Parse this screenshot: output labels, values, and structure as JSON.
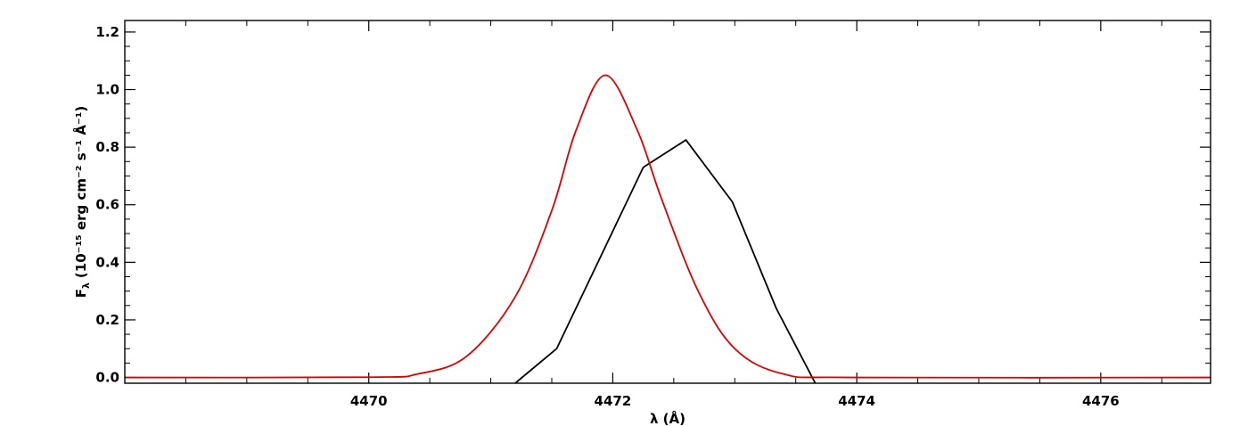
{
  "chart_data": {
    "type": "line",
    "xlabel": "λ (Å)",
    "ylabel": "F",
    "ylabel_sub": "λ",
    "ylabel_units": "(10⁻¹⁵ erg cm⁻² s⁻¹ Å⁻¹)",
    "xlim": [
      4468.0,
      4476.9
    ],
    "ylim": [
      -0.02,
      1.24
    ],
    "xticks": [
      4470,
      4472,
      4474,
      4476
    ],
    "xtick_labels": [
      "4470",
      "4472",
      "4474",
      "4476"
    ],
    "yticks": [
      0.0,
      0.2,
      0.4,
      0.6,
      0.8,
      1.0,
      1.2
    ],
    "ytick_labels": [
      "0.0",
      "0.2",
      "0.4",
      "0.6",
      "0.8",
      "1.0",
      "1.2"
    ],
    "grid": false,
    "series": [
      {
        "color": "#000000",
        "style": "polyline",
        "x": [
          4471.2,
          4471.54,
          4472.25,
          4472.6,
          4472.98,
          4473.34,
          4473.66
        ],
        "y": [
          -0.02,
          0.1,
          0.73,
          0.825,
          0.61,
          0.24,
          -0.02
        ]
      },
      {
        "color": "#dd0000",
        "style": "gaussian",
        "x": [
          4468.0,
          4470.0,
          4470.4,
          4470.8,
          4471.2,
          4471.5,
          4471.7,
          4471.94,
          4472.2,
          4472.4,
          4472.7,
          4473.0,
          4473.4,
          4474.0,
          4476.9
        ],
        "y": [
          0.0,
          0.001,
          0.012,
          0.073,
          0.28,
          0.58,
          0.86,
          1.05,
          0.86,
          0.62,
          0.3,
          0.1,
          0.012,
          0.0,
          0.0
        ]
      }
    ]
  }
}
